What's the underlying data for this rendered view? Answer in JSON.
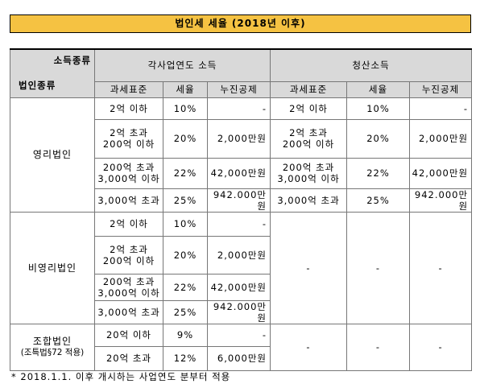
{
  "title": "법인세 세율 (2018년 이후)",
  "header": {
    "income_type": "소득종류",
    "corp_type": "법인종류",
    "group1": "각사업연도 소득",
    "group2": "청산소득",
    "columns": [
      "과세표준",
      "세율",
      "누진공제",
      "과세표준",
      "세율",
      "누진공제"
    ]
  },
  "sections": [
    {
      "name": [
        "영리법인"
      ],
      "rows": [
        {
          "base": [
            "2억 이하"
          ],
          "rate": "10%",
          "deduction": "-"
        },
        {
          "base": [
            "2억 초과",
            "200억 이하"
          ],
          "rate": "20%",
          "deduction": "2,000만원"
        },
        {
          "base": [
            "200억 초과",
            "3,000억 이하"
          ],
          "rate": "22%",
          "deduction": "42,000만원"
        },
        {
          "base": [
            "3,000억 초과"
          ],
          "rate": "25%",
          "deduction": "942.000만원"
        }
      ],
      "liquidation": [
        {
          "base": [
            "2억 이하"
          ],
          "rate": "10%",
          "deduction": "-"
        },
        {
          "base": [
            "2억 초과",
            "200억 이하"
          ],
          "rate": "20%",
          "deduction": "2,000만원"
        },
        {
          "base": [
            "200억 초과",
            "3,000억 이하"
          ],
          "rate": "22%",
          "deduction": "42,000만원"
        },
        {
          "base": [
            "3,000억 초과"
          ],
          "rate": "25%",
          "deduction": "942.000만원"
        }
      ]
    },
    {
      "name": [
        "비영리법인"
      ],
      "rows": [
        {
          "base": [
            "2억 이하"
          ],
          "rate": "10%",
          "deduction": "-"
        },
        {
          "base": [
            "2억 초과",
            "200억 이하"
          ],
          "rate": "20%",
          "deduction": "2,000만원"
        },
        {
          "base": [
            "200억 초과",
            "3,000억 이하"
          ],
          "rate": "22%",
          "deduction": "42,000만원"
        },
        {
          "base": [
            "3,000억 초과"
          ],
          "rate": "25%",
          "deduction": "942.000만원"
        }
      ],
      "liquidation": {
        "base": "-",
        "rate": "-",
        "deduction": "-"
      }
    },
    {
      "name": [
        "조합법인",
        "(조특법§72 적용)"
      ],
      "rows": [
        {
          "base": [
            "20억 이하"
          ],
          "rate": "9%",
          "deduction": "-"
        },
        {
          "base": [
            "20억 초과"
          ],
          "rate": "12%",
          "deduction": "6,000만원"
        }
      ],
      "liquidation": {
        "base": "-",
        "rate": "-",
        "deduction": "-"
      }
    }
  ],
  "footnote": "* 2018.1.1. 이후 개시하는 사업연도 분부터 적용"
}
